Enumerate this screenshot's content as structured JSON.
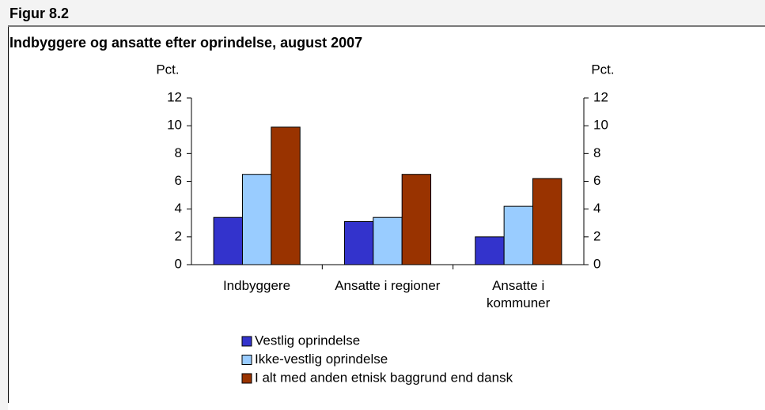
{
  "chart_data": {
    "type": "bar",
    "figure_label": "Figur 8.2",
    "title": "Indbyggere og ansatte efter oprindelse, august 2007",
    "y_label": "Pct.",
    "y2_label": "Pct.",
    "categories": [
      "Indbyggere",
      "Ansatte i regioner",
      "Ansatte i\nkommuner"
    ],
    "series": [
      {
        "name": "Vestlig oprindelse",
        "color": "#3333cc",
        "values": [
          3.4,
          3.1,
          2.0
        ]
      },
      {
        "name": "Ikke-vestlig oprindelse",
        "color": "#99ccff",
        "values": [
          6.5,
          3.4,
          4.2
        ]
      },
      {
        "name": "I alt med anden etnisk baggrund end dansk",
        "color": "#993300",
        "values": [
          9.9,
          6.5,
          6.2
        ]
      }
    ],
    "ylim": [
      0,
      12
    ],
    "yticks": [
      0,
      2,
      4,
      6,
      8,
      10,
      12
    ],
    "y2lim": [
      0,
      12
    ],
    "y2ticks": [
      0,
      2,
      4,
      6,
      8,
      10,
      12
    ],
    "grid": false
  }
}
